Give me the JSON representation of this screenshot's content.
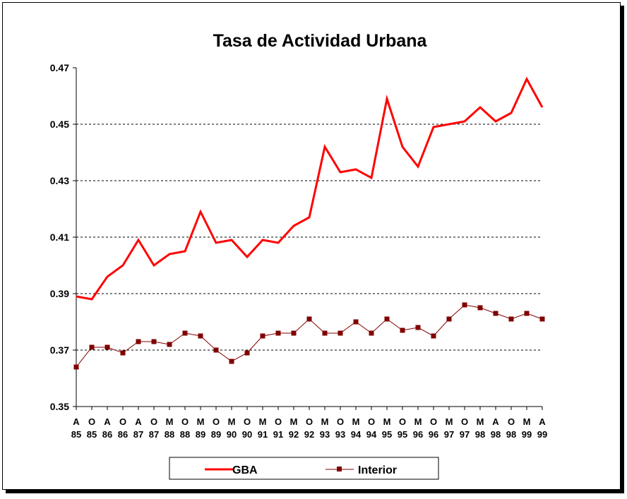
{
  "chart_data": {
    "type": "line",
    "title": "Tasa de Actividad Urbana",
    "xlabel": "",
    "ylabel": "",
    "ylim": [
      0.35,
      0.47
    ],
    "yticks": [
      "0.47",
      "0.45",
      "0.43",
      "0.41",
      "0.39",
      "0.37",
      "0.35"
    ],
    "grid": "horizontal-dashed",
    "legend_position": "bottom",
    "categories": [
      [
        "A",
        "85"
      ],
      [
        "O",
        "85"
      ],
      [
        "A",
        "86"
      ],
      [
        "O",
        "86"
      ],
      [
        "A",
        "87"
      ],
      [
        "O",
        "87"
      ],
      [
        "M",
        "88"
      ],
      [
        "O",
        "88"
      ],
      [
        "M",
        "89"
      ],
      [
        "O",
        "89"
      ],
      [
        "M",
        "90"
      ],
      [
        "O",
        "90"
      ],
      [
        "M",
        "91"
      ],
      [
        "O",
        "91"
      ],
      [
        "M",
        "92"
      ],
      [
        "O",
        "92"
      ],
      [
        "M",
        "93"
      ],
      [
        "O",
        "93"
      ],
      [
        "M",
        "94"
      ],
      [
        "O",
        "94"
      ],
      [
        "M",
        "95"
      ],
      [
        "O",
        "95"
      ],
      [
        "M",
        "96"
      ],
      [
        "O",
        "96"
      ],
      [
        "M",
        "97"
      ],
      [
        "O",
        "97"
      ],
      [
        "M",
        "98"
      ],
      [
        "A",
        "98"
      ],
      [
        "O",
        "98"
      ],
      [
        "M",
        "99"
      ],
      [
        "A",
        "99"
      ]
    ],
    "series": [
      {
        "name": "GBA",
        "color": "#ff0000",
        "values": [
          0.389,
          0.388,
          0.396,
          0.4,
          0.409,
          0.4,
          0.404,
          0.405,
          0.419,
          0.408,
          0.409,
          0.403,
          0.409,
          0.408,
          0.414,
          0.417,
          0.442,
          0.433,
          0.434,
          0.431,
          0.459,
          0.442,
          0.435,
          0.449,
          0.45,
          0.451,
          0.456,
          0.451,
          0.454,
          0.466,
          0.456
        ]
      },
      {
        "name": "Interior",
        "color": "#800000",
        "values": [
          0.364,
          0.371,
          0.371,
          0.369,
          0.373,
          0.373,
          0.372,
          0.376,
          0.375,
          0.37,
          0.366,
          0.369,
          0.375,
          0.376,
          0.376,
          0.381,
          0.376,
          0.376,
          0.38,
          0.376,
          0.381,
          0.377,
          0.378,
          0.375,
          0.381,
          0.386,
          0.385,
          0.383,
          0.381,
          0.383,
          0.381
        ]
      }
    ]
  }
}
